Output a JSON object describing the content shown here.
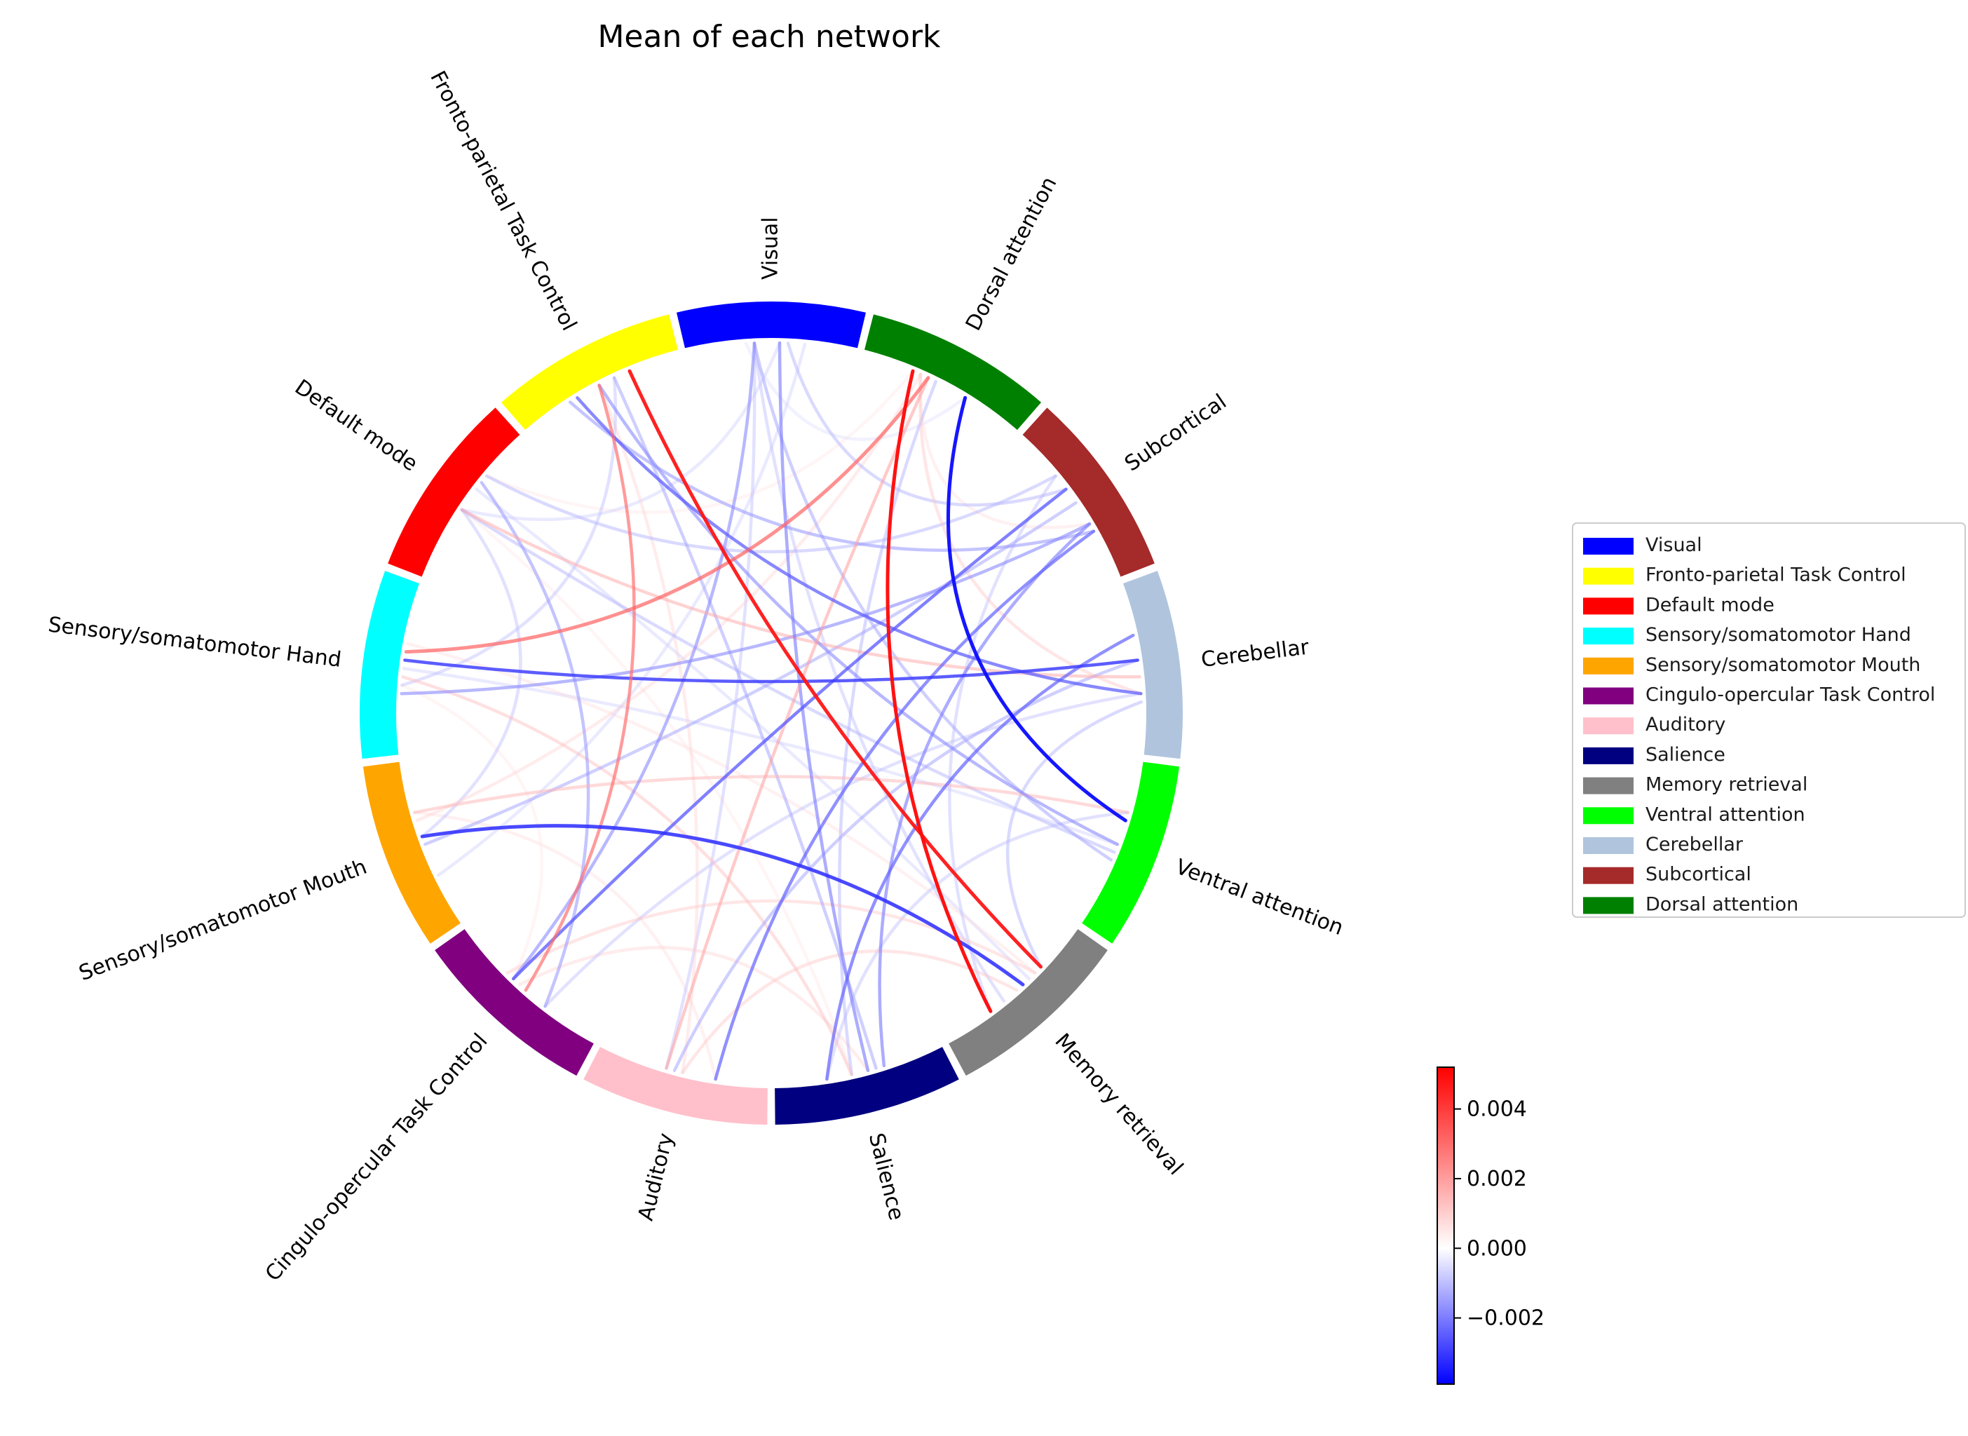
{
  "title": "Mean of each network",
  "networks": [
    {
      "name": "Visual",
      "color": "#0000ff"
    },
    {
      "name": "Dorsal attention",
      "color": "#008000"
    },
    {
      "name": "Subcortical",
      "color": "#a52a2a"
    },
    {
      "name": "Cerebellar",
      "color": "#b0c4de"
    },
    {
      "name": "Ventral attention",
      "color": "#00ff00"
    },
    {
      "name": "Memory retrieval",
      "color": "#808080"
    },
    {
      "name": "Salience",
      "color": "#000080"
    },
    {
      "name": "Auditory",
      "color": "#ffc0cb"
    },
    {
      "name": "Cingulo-opercular Task Control",
      "color": "#800080"
    },
    {
      "name": "Sensory/somatomotor Mouth",
      "color": "#ffa500"
    },
    {
      "name": "Sensory/somatomotor Hand",
      "color": "#00ffff"
    },
    {
      "name": "Default mode",
      "color": "#ff0000"
    },
    {
      "name": "Fronto-parietal Task Control",
      "color": "#ffff00"
    }
  ],
  "legend": [
    {
      "label": "Visual",
      "color": "#0000ff"
    },
    {
      "label": "Fronto-parietal Task Control",
      "color": "#ffff00"
    },
    {
      "label": "Default mode",
      "color": "#ff0000"
    },
    {
      "label": "Sensory/somatomotor Hand",
      "color": "#00ffff"
    },
    {
      "label": "Sensory/somatomotor Mouth",
      "color": "#ffa500"
    },
    {
      "label": "Cingulo-opercular Task Control",
      "color": "#800080"
    },
    {
      "label": "Auditory",
      "color": "#ffc0cb"
    },
    {
      "label": "Salience",
      "color": "#000080"
    },
    {
      "label": "Memory retrieval",
      "color": "#808080"
    },
    {
      "label": "Ventral attention",
      "color": "#00ff00"
    },
    {
      "label": "Cerebellar",
      "color": "#b0c4de"
    },
    {
      "label": "Subcortical",
      "color": "#a52a2a"
    },
    {
      "label": "Dorsal attention",
      "color": "#008000"
    }
  ],
  "colorbar": {
    "min": -0.0039,
    "max": 0.0052,
    "ticks": [
      0.004,
      0.002,
      0.0,
      -0.002
    ],
    "tick_labels": [
      "0.004",
      "0.002",
      "0.000",
      "−0.002"
    ],
    "colors": [
      "#0000ff",
      "#ffffff",
      "#ff0000"
    ]
  },
  "connections": [
    {
      "from": "Dorsal attention",
      "to": "Ventral attention",
      "value": -0.0037
    },
    {
      "from": "Dorsal attention",
      "to": "Memory retrieval",
      "value": 0.005
    },
    {
      "from": "Fronto-parietal Task Control",
      "to": "Memory retrieval",
      "value": 0.0048
    },
    {
      "from": "Sensory/somatomotor Mouth",
      "to": "Memory retrieval",
      "value": -0.0032
    },
    {
      "from": "Cerebellar",
      "to": "Sensory/somatomotor Hand",
      "value": -0.003
    },
    {
      "from": "Subcortical",
      "to": "Cingulo-opercular Task Control",
      "value": -0.0026
    },
    {
      "from": "Subcortical",
      "to": "Auditory",
      "value": -0.0024
    },
    {
      "from": "Cerebellar",
      "to": "Salience",
      "value": -0.0024
    },
    {
      "from": "Fronto-parietal Task Control",
      "to": "Cerebellar",
      "value": -0.0025
    },
    {
      "from": "Visual",
      "to": "Salience",
      "value": -0.002
    },
    {
      "from": "Sensory/somatomotor Hand",
      "to": "Subcortical",
      "value": -0.0018
    },
    {
      "from": "Sensory/somatomotor Hand",
      "to": "Dorsal attention",
      "value": 0.0032
    },
    {
      "from": "Fronto-parietal Task Control",
      "to": "Cingulo-opercular Task Control",
      "value": 0.003
    },
    {
      "from": "Visual",
      "to": "Cingulo-opercular Task Control",
      "value": -0.0018
    },
    {
      "from": "Default mode",
      "to": "Ventral attention",
      "value": -0.0012
    },
    {
      "from": "Default mode",
      "to": "Cerebellar",
      "value": 0.0018
    },
    {
      "from": "Default mode",
      "to": "Cingulo-opercular Task Control",
      "value": -0.0016
    },
    {
      "from": "Auditory",
      "to": "Dorsal attention",
      "value": 0.002
    },
    {
      "from": "Sensory/somatomotor Mouth",
      "to": "Ventral attention",
      "value": 0.0016
    },
    {
      "from": "Subcortical",
      "to": "Salience",
      "value": -0.002
    },
    {
      "from": "Visual",
      "to": "Ventral attention",
      "value": -0.0014
    },
    {
      "from": "Fronto-parietal Task Control",
      "to": "Subcortical",
      "value": -0.0016
    },
    {
      "from": "Sensory/somatomotor Hand",
      "to": "Salience",
      "value": 0.0014
    },
    {
      "from": "Memory retrieval",
      "to": "Auditory",
      "value": 0.0012
    },
    {
      "from": "Salience",
      "to": "Dorsal attention",
      "value": -0.0012
    },
    {
      "from": "Visual",
      "to": "Subcortical",
      "value": -0.0012
    },
    {
      "from": "Visual",
      "to": "Auditory",
      "value": -0.001
    },
    {
      "from": "Default mode",
      "to": "Sensory/somatomotor Mouth",
      "value": -0.001
    },
    {
      "from": "Cingulo-opercular Task Control",
      "to": "Memory retrieval",
      "value": 0.0012
    },
    {
      "from": "Sensory/somatomotor Mouth",
      "to": "Subcortical",
      "value": -0.0014
    },
    {
      "from": "Default mode",
      "to": "Subcortical",
      "value": -0.0012
    },
    {
      "from": "Fronto-parietal Task Control",
      "to": "Auditory",
      "value": 0.001
    },
    {
      "from": "Sensory/somatomotor Hand",
      "to": "Ventral attention",
      "value": -0.0008
    },
    {
      "from": "Auditory",
      "to": "Cerebellar",
      "value": -0.0014
    },
    {
      "from": "Cingulo-opercular Task Control",
      "to": "Salience",
      "value": 0.001
    },
    {
      "from": "Visual",
      "to": "Default mode",
      "value": -0.0008
    },
    {
      "from": "Fronto-parietal Task Control",
      "to": "Sensory/somatomotor Hand",
      "value": -0.001
    },
    {
      "from": "Memory retrieval",
      "to": "Cerebellar",
      "value": -0.0012
    },
    {
      "from": "Sensory/somatomotor Mouth",
      "to": "Dorsal attention",
      "value": 0.001
    },
    {
      "from": "Dorsal attention",
      "to": "Cerebellar",
      "value": 0.0012
    },
    {
      "from": "Default mode",
      "to": "Memory retrieval",
      "value": -0.0008
    },
    {
      "from": "Sensory/somatomotor Hand",
      "to": "Memory retrieval",
      "value": 0.0008
    },
    {
      "from": "Visual",
      "to": "Sensory/somatomotor Mouth",
      "value": -0.0008
    },
    {
      "from": "Salience",
      "to": "Ventral attention",
      "value": -0.001
    },
    {
      "from": "Dorsal attention",
      "to": "Default mode",
      "value": 0.0006
    },
    {
      "from": "Fronto-parietal Task Control",
      "to": "Ventral attention",
      "value": -0.0018
    },
    {
      "from": "Subcortical",
      "to": "Memory retrieval",
      "value": -0.001
    },
    {
      "from": "Cingulo-opercular Task Control",
      "to": "Cerebellar",
      "value": -0.001
    },
    {
      "from": "Auditory",
      "to": "Sensory/somatomotor Mouth",
      "value": 0.0008
    },
    {
      "from": "Visual",
      "to": "Dorsal attention",
      "value": -0.0006
    },
    {
      "from": "Sensory/somatomotor Hand",
      "to": "Cingulo-opercular Task Control",
      "value": 0.0006
    },
    {
      "from": "Visual",
      "to": "Memory retrieval",
      "value": -0.001
    },
    {
      "from": "Default mode",
      "to": "Salience",
      "value": 0.0006
    },
    {
      "from": "Fronto-parietal Task Control",
      "to": "Salience",
      "value": -0.0014
    },
    {
      "from": "Dorsal attention",
      "to": "Subcortical",
      "value": 0.0008
    }
  ]
}
